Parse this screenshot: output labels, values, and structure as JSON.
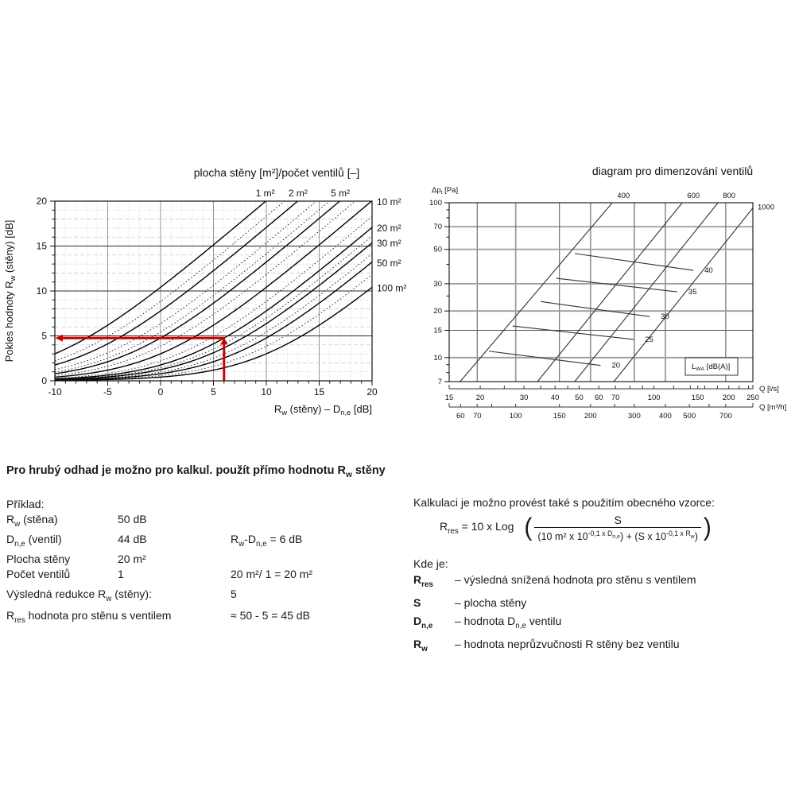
{
  "left_text": {
    "heading": "Pro hrubý odhad je možno pro kalkul. použít přímo hodnotu R_{w} stěny",
    "example_label": "Příklad:",
    "rows": [
      {
        "label": "R_{w} (stěna)",
        "value": "50 dB",
        "note": ""
      },
      {
        "label": "D_{n,e} (ventil)",
        "value": "44 dB",
        "note": "R_{w}-D_{n,e} = 6 dB"
      },
      {
        "label": "Plocha stěny",
        "value": "20 m²",
        "note": ""
      },
      {
        "label": "Počet ventilů",
        "value": "1",
        "note": "20 m²/ 1 = 20 m²"
      }
    ],
    "result_rows": [
      {
        "label": "Výsledná redukce R_{w} (stěny):",
        "value": "5"
      },
      {
        "label": "R_{res} hodnota pro stěnu s ventilem",
        "value": "≈ 50 - 5 = 45 dB"
      }
    ]
  },
  "right_text": {
    "heading": "Kalkulaci je možno provést také s použitím obecného vzorce:",
    "formula": {
      "lhs": "R_{res} = 10 x Log",
      "numerator": "S",
      "denominator": "(10 m² x 10^{-0,1 x D_{n,e}}) + (S x 10^{-0,1 x R_{w}})"
    },
    "where_label": "Kde je:",
    "definitions": [
      {
        "term": "R_{res}",
        "desc": "– výsledná snížená hodnota pro stěnu s ventilem"
      },
      {
        "term": "S",
        "desc": "– plocha stěny"
      },
      {
        "term": "D_{n,e}",
        "desc": "– hodnota D_{n,e} ventilu"
      },
      {
        "term": "R_{w}",
        "desc": "– hodnota neprůzvučnosti R stěny bez ventilu"
      }
    ]
  },
  "chart_data": [
    {
      "id": "wall-area-reduction-chart",
      "type": "line",
      "title": "plocha stěny [m²]/počet ventilů [–]",
      "xlabel": "R_{w} (stěny) – D_{n,e} [dB]",
      "ylabel": "Pokles hodnoty R_{w} (stěny) [dB]",
      "xlim": [
        -10,
        20
      ],
      "ylim": [
        0,
        20
      ],
      "x_ticks_major": [
        -10,
        -5,
        0,
        5,
        10,
        15,
        20
      ],
      "y_ticks_major": [
        0,
        5,
        10,
        15,
        20
      ],
      "x_minor_step": 1,
      "y_minor_step": 1,
      "curve_formula": "deltaR = 10*log10(1 + (10/S)*10^(x/10)), S = wall area per valve in m2",
      "areas_solid": [
        1,
        2,
        5,
        10,
        20,
        30,
        50,
        100
      ],
      "areas_dotted": [
        1.5,
        3,
        4,
        7,
        15,
        25,
        40,
        70
      ],
      "top_labels": [
        {
          "text": "1 m²",
          "x": 9.9
        },
        {
          "text": "2 m²",
          "x": 13.0
        },
        {
          "text": "5 m²",
          "x": 17.0
        }
      ],
      "right_labels": [
        {
          "text": "10 m²",
          "y": 20.0
        },
        {
          "text": "20 m²",
          "y": 17.1
        },
        {
          "text": "30 m²",
          "y": 15.4
        },
        {
          "text": "50 m²",
          "y": 13.2
        },
        {
          "text": "100 m²",
          "y": 10.4
        }
      ],
      "annotation_arrow": {
        "color": "#cc0000",
        "x_value": 6,
        "y_value": 4.76,
        "desc": "example reading: Rw-Dn,e = 6 dB on 20 m2 curve gives reduction ~5 dB"
      }
    },
    {
      "id": "valve-sizing-chart",
      "type": "line",
      "title": "diagram pro dimenzování ventilů",
      "ylabel": "Δp_{t} [Pa]",
      "xlabel_primary": "Q [l/s]",
      "xlabel_secondary": "Q [m³/h]",
      "x_log_range_lps": [
        15,
        250
      ],
      "y_log_range_pa": [
        7,
        100
      ],
      "y_tick_labels": [
        7,
        10,
        15,
        20,
        30,
        50,
        70,
        100
      ],
      "y_minor_ticks": [
        8,
        9,
        25,
        40,
        60,
        80,
        90
      ],
      "x_tick_labels_lps": [
        15,
        20,
        30,
        40,
        50,
        60,
        70,
        100,
        150,
        200,
        250
      ],
      "x_minor_ticks_lps": [
        20,
        25,
        30,
        35,
        40,
        45,
        50,
        60,
        70,
        80,
        90,
        100,
        120,
        140,
        150,
        160,
        180,
        200,
        220,
        240
      ],
      "x_tick_labels_m3h": [
        60,
        70,
        100,
        150,
        200,
        300,
        400,
        500,
        700
      ],
      "x_minor_ticks_m3h": [
        60,
        70,
        80,
        100,
        150,
        200,
        250,
        300,
        400,
        500,
        600,
        700
      ],
      "grid_y_pa_gray": [
        10,
        20,
        30,
        50
      ],
      "grid_y_pa_dark": [
        15,
        70
      ],
      "grid_x_m3h_gray": [
        100,
        200,
        300,
        400
      ],
      "grid_x_m3h_dark": [
        70,
        150,
        700
      ],
      "diagonals": [
        {
          "label": "400",
          "q_at_7pa": 16.6,
          "q_at_100pa": 68
        },
        {
          "label": "600",
          "q_at_7pa": 34,
          "q_at_100pa": 130
        },
        {
          "label": "800",
          "q_at_7pa": 48,
          "q_at_100pa": 181
        },
        {
          "label": "1000",
          "q_at_7pa": 69,
          "q_at_100pa": 260
        }
      ],
      "lwa_contours": [
        {
          "label": "20",
          "from": [
            21.7,
            11.0
          ],
          "to": [
            61,
            8.9
          ]
        },
        {
          "label": "25",
          "from": [
            27.0,
            16.0
          ],
          "to": [
            83,
            13.1
          ]
        },
        {
          "label": "30",
          "from": [
            35.0,
            23.0
          ],
          "to": [
            96,
            18.4
          ]
        },
        {
          "label": "35",
          "from": [
            40.5,
            32.5
          ],
          "to": [
            124,
            26.6
          ]
        },
        {
          "label": "40",
          "from": [
            48.0,
            47.0
          ],
          "to": [
            144,
            36.6
          ]
        }
      ],
      "lwa_box_label": "L_{WA} [dB(A)]"
    }
  ]
}
